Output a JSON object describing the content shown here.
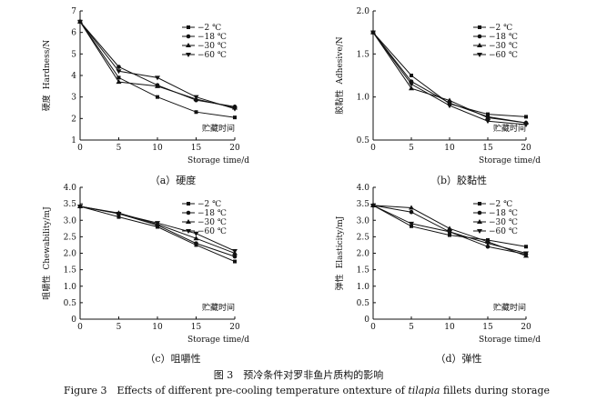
{
  "figure": {
    "caption_cn": "图 3　预冷条件对罗非鱼片质构的影响",
    "caption_en_before": "Figure 3　Effects of different pre-cooling temperature ontexture of ",
    "caption_en_italic": "tilapia",
    "caption_en_after": " fillets during storage"
  },
  "chart_data": [
    {
      "type": "line",
      "panel_label": "（a）硬度",
      "ylabel_cn": "硬度",
      "ylabel": "Hardness/N",
      "xlabel_cn": "贮藏时间",
      "xlabel": "Storage time/d",
      "x": [
        0,
        5,
        10,
        15,
        20
      ],
      "xlim": [
        0,
        20
      ],
      "ylim": [
        1,
        7
      ],
      "yticks": [
        "1",
        "2",
        "3",
        "4",
        "5",
        "6",
        "7"
      ],
      "ytick_values": [
        1,
        2,
        3,
        4,
        5,
        6,
        7
      ],
      "legend_position": "top-right",
      "series": [
        {
          "name": "−2 ℃",
          "marker": "square",
          "values": [
            6.5,
            3.9,
            3.0,
            2.3,
            2.05
          ]
        },
        {
          "name": "−18 ℃",
          "marker": "circle",
          "values": [
            6.5,
            4.4,
            3.55,
            2.85,
            2.55
          ]
        },
        {
          "name": "−30 ℃",
          "marker": "triangle-up",
          "values": [
            6.5,
            3.7,
            3.5,
            2.9,
            2.5
          ]
        },
        {
          "name": "−60 ℃",
          "marker": "triangle-down",
          "values": [
            6.5,
            4.2,
            3.9,
            3.0,
            2.45
          ]
        }
      ]
    },
    {
      "type": "line",
      "panel_label": "（b）胶黏性",
      "ylabel_cn": "胶黏性",
      "ylabel": "Adhesive/N",
      "xlabel_cn": "贮藏时间",
      "xlabel": "Storage time/d",
      "x": [
        0,
        5,
        10,
        15,
        20
      ],
      "xlim": [
        0,
        20
      ],
      "ylim": [
        0.5,
        2.0
      ],
      "yticks": [
        "0.5",
        "1.0",
        "1.5",
        "2.0"
      ],
      "ytick_values": [
        0.5,
        1.0,
        1.5,
        2.0
      ],
      "legend_position": "top-right",
      "series": [
        {
          "name": "−2 ℃",
          "marker": "square",
          "values": [
            1.75,
            1.25,
            0.92,
            0.8,
            0.77
          ]
        },
        {
          "name": "−18 ℃",
          "marker": "circle",
          "values": [
            1.75,
            1.18,
            0.93,
            0.77,
            0.7
          ]
        },
        {
          "name": "−30 ℃",
          "marker": "triangle-up",
          "values": [
            1.75,
            1.1,
            0.96,
            0.76,
            0.7
          ]
        },
        {
          "name": "−60 ℃",
          "marker": "triangle-down",
          "values": [
            1.75,
            1.15,
            0.9,
            0.72,
            0.68
          ]
        }
      ]
    },
    {
      "type": "line",
      "panel_label": "（c）咀嚼性",
      "ylabel_cn": "咀嚼性",
      "ylabel": "Chewability/mJ",
      "xlabel_cn": "贮藏时间",
      "xlabel": "Storage time/d",
      "x": [
        0,
        5,
        10,
        15,
        20
      ],
      "xlim": [
        0,
        20
      ],
      "ylim": [
        0,
        4.0
      ],
      "yticks": [
        "0",
        "0.5",
        "1.0",
        "1.5",
        "2.0",
        "2.5",
        "3.0",
        "3.5",
        "4.0"
      ],
      "ytick_values": [
        0,
        0.5,
        1.0,
        1.5,
        2.0,
        2.5,
        3.0,
        3.5,
        4.0
      ],
      "legend_position": "top-right",
      "series": [
        {
          "name": "−2 ℃",
          "marker": "square",
          "values": [
            3.42,
            3.1,
            2.8,
            2.25,
            1.75
          ]
        },
        {
          "name": "−18 ℃",
          "marker": "circle",
          "values": [
            3.42,
            3.2,
            2.85,
            2.3,
            1.9
          ]
        },
        {
          "name": "−30 ℃",
          "marker": "triangle-up",
          "values": [
            3.42,
            3.22,
            2.88,
            2.45,
            2.0
          ]
        },
        {
          "name": "−60 ℃",
          "marker": "triangle-down",
          "values": [
            3.42,
            3.2,
            2.92,
            2.6,
            2.07
          ]
        }
      ]
    },
    {
      "type": "line",
      "panel_label": "（d）弹性",
      "ylabel_cn": "弹性",
      "ylabel": "Elasticity/mJ",
      "xlabel_cn": "贮藏时间",
      "xlabel": "Storage time/d",
      "x": [
        0,
        5,
        10,
        15,
        20
      ],
      "xlim": [
        0,
        20
      ],
      "ylim": [
        0,
        4.0
      ],
      "yticks": [
        "0",
        "0.5",
        "1.0",
        "1.5",
        "2.0",
        "2.5",
        "3.0",
        "3.5",
        "4.0"
      ],
      "ytick_values": [
        0,
        0.5,
        1.0,
        1.5,
        2.0,
        2.5,
        3.0,
        3.5,
        4.0
      ],
      "legend_position": "top-right",
      "series": [
        {
          "name": "−2 ℃",
          "marker": "square",
          "values": [
            3.45,
            2.82,
            2.55,
            2.4,
            2.2
          ]
        },
        {
          "name": "−18 ℃",
          "marker": "circle",
          "values": [
            3.45,
            3.25,
            2.65,
            2.2,
            1.97
          ]
        },
        {
          "name": "−30 ℃",
          "marker": "triangle-up",
          "values": [
            3.45,
            3.38,
            2.75,
            2.35,
            1.92
          ]
        },
        {
          "name": "−60 ℃",
          "marker": "triangle-down",
          "values": [
            3.45,
            2.9,
            2.65,
            2.3,
            2.0
          ]
        }
      ]
    }
  ]
}
